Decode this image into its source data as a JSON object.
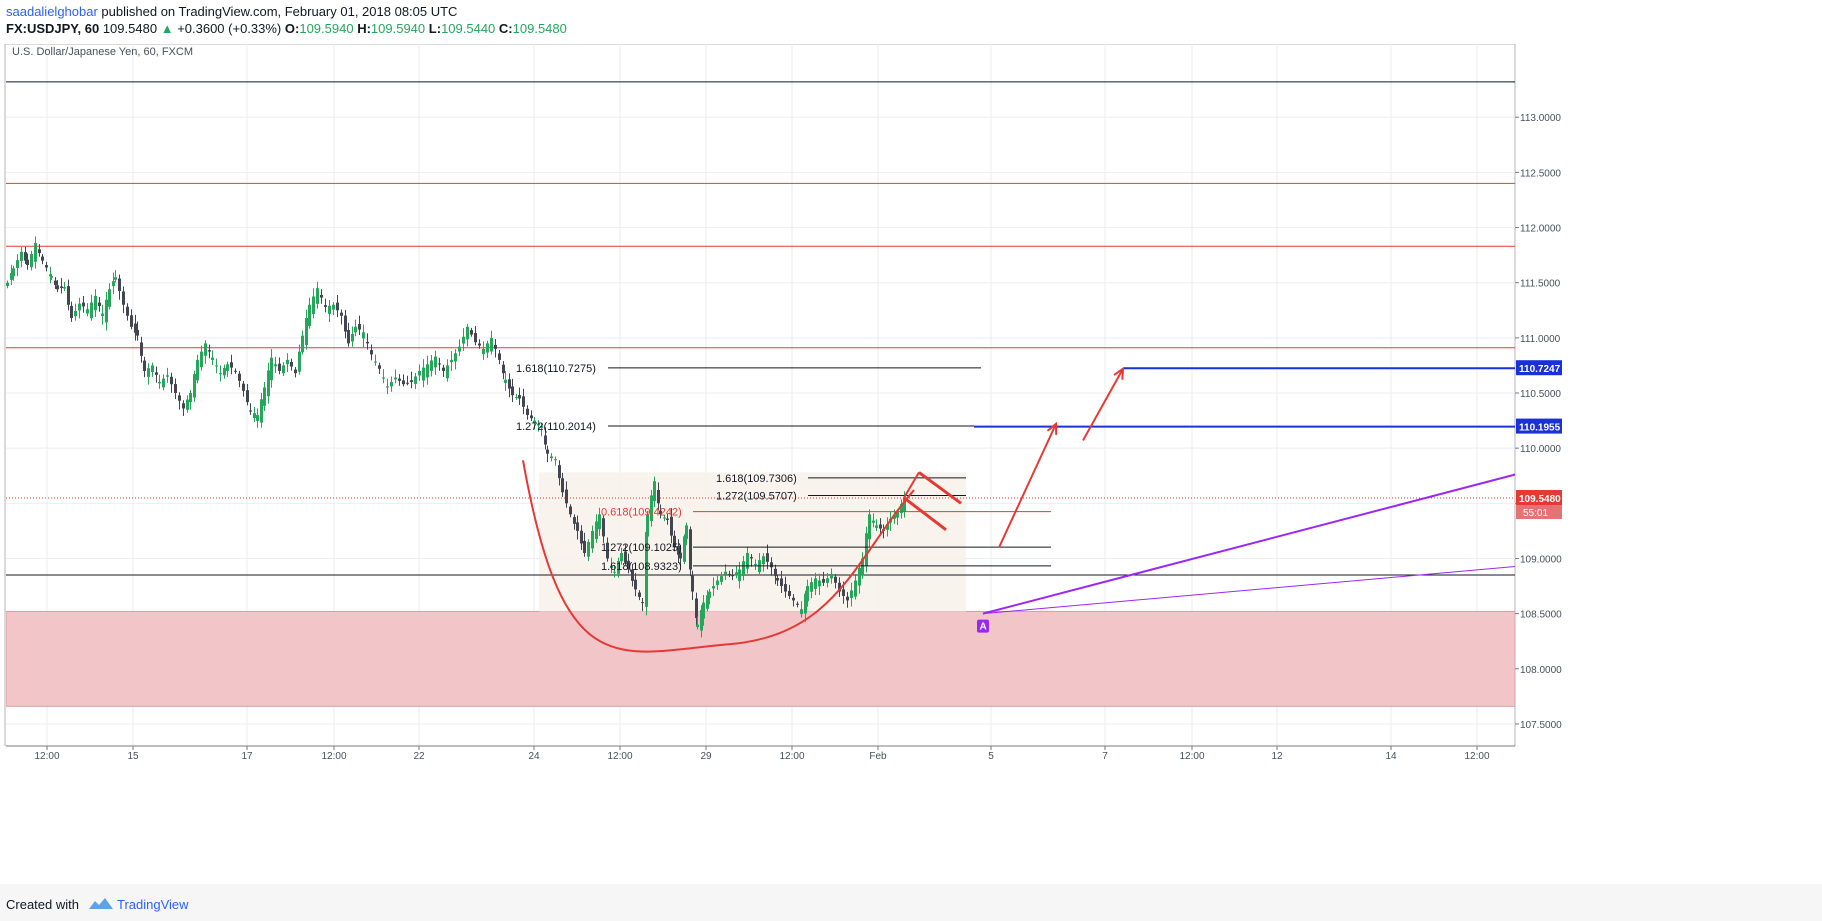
{
  "header": {
    "author": "saadalielghobar",
    "published_text": "published on TradingView.com, February 01, 2018 08:05 UTC",
    "symbol": "FX:USDJPY, 60",
    "last_price": "109.5480",
    "change_arrow": "▲",
    "change": "+0.3600 (+0.33%)",
    "o_label": "O:",
    "o_value": "109.5940",
    "h_label": "H:",
    "h_value": "109.5940",
    "l_label": "L:",
    "l_value": "109.5440",
    "c_label": "C:",
    "c_value": "109.5480"
  },
  "footer": {
    "created_with": "Created with",
    "brand": "TradingView"
  },
  "colors": {
    "up": "#26a65b",
    "down": "#434651",
    "resistance": "#e53935",
    "target_line": "#1a31d6",
    "trend_line": "#9c27f5",
    "demand_zone": "#f2c6c8",
    "fib_zone": "#f7f2ea"
  },
  "chart_data": {
    "type": "candlestick",
    "title": "U.S. Dollar/Japanese Yen, 60, FXCM",
    "y_axis": {
      "ylim": [
        107.3,
        113.7
      ],
      "ticks": [
        "113.0000",
        "112.5000",
        "112.0000",
        "111.5000",
        "111.0000",
        "110.5000",
        "110.0000",
        "109.5000",
        "109.0000",
        "108.5000",
        "108.0000",
        "107.5000"
      ],
      "price_labels": [
        {
          "text": "110.7247",
          "value": 110.7247,
          "color": "#1a31d6"
        },
        {
          "text": "110.1955",
          "value": 110.1955,
          "color": "#1a31d6"
        },
        {
          "text": "109.5480",
          "value": 109.548,
          "color": "#e53935"
        }
      ],
      "countdown": "55:01"
    },
    "x_axis": {
      "ticks": [
        "12:00",
        "15",
        "17",
        "12:00",
        "22",
        "24",
        "12:00",
        "29",
        "12:00",
        "Feb",
        "5",
        "7",
        "12:00",
        "12",
        "14",
        "12:00"
      ]
    },
    "ohlc_points": [
      {
        "t": 0,
        "c": 111.5
      },
      {
        "t": 6,
        "c": 111.63
      },
      {
        "t": 14,
        "c": 111.78
      },
      {
        "t": 20,
        "c": 111.66
      },
      {
        "t": 28,
        "c": 111.86
      },
      {
        "t": 35,
        "c": 111.7
      },
      {
        "t": 44,
        "c": 111.56
      },
      {
        "t": 50,
        "c": 111.44
      },
      {
        "t": 57,
        "c": 111.46
      },
      {
        "t": 64,
        "c": 111.18
      },
      {
        "t": 72,
        "c": 111.31
      },
      {
        "t": 80,
        "c": 111.26
      },
      {
        "t": 88,
        "c": 111.38
      },
      {
        "t": 95,
        "c": 111.22
      },
      {
        "t": 102,
        "c": 111.44
      },
      {
        "t": 108,
        "c": 111.55
      },
      {
        "t": 116,
        "c": 111.3
      },
      {
        "t": 124,
        "c": 111.1
      },
      {
        "t": 130,
        "c": 111.02
      },
      {
        "t": 137,
        "c": 110.7
      },
      {
        "t": 145,
        "c": 110.75
      },
      {
        "t": 152,
        "c": 110.6
      },
      {
        "t": 160,
        "c": 110.66
      },
      {
        "t": 168,
        "c": 110.5
      },
      {
        "t": 176,
        "c": 110.36
      },
      {
        "t": 183,
        "c": 110.5
      },
      {
        "t": 190,
        "c": 110.8
      },
      {
        "t": 198,
        "c": 110.95
      },
      {
        "t": 205,
        "c": 110.82
      },
      {
        "t": 213,
        "c": 110.68
      },
      {
        "t": 220,
        "c": 110.76
      },
      {
        "t": 228,
        "c": 110.7
      },
      {
        "t": 236,
        "c": 110.52
      },
      {
        "t": 243,
        "c": 110.34
      },
      {
        "t": 250,
        "c": 110.3
      },
      {
        "t": 257,
        "c": 110.55
      },
      {
        "t": 264,
        "c": 110.82
      },
      {
        "t": 272,
        "c": 110.7
      },
      {
        "t": 280,
        "c": 110.8
      },
      {
        "t": 288,
        "c": 110.68
      },
      {
        "t": 295,
        "c": 111.02
      },
      {
        "t": 302,
        "c": 111.3
      },
      {
        "t": 310,
        "c": 111.45
      },
      {
        "t": 318,
        "c": 111.28
      },
      {
        "t": 326,
        "c": 111.3
      },
      {
        "t": 334,
        "c": 111.2
      },
      {
        "t": 341,
        "c": 110.95
      },
      {
        "t": 348,
        "c": 111.1
      },
      {
        "t": 356,
        "c": 111.05
      },
      {
        "t": 364,
        "c": 110.85
      },
      {
        "t": 372,
        "c": 110.72
      },
      {
        "t": 380,
        "c": 110.56
      },
      {
        "t": 388,
        "c": 110.64
      },
      {
        "t": 396,
        "c": 110.58
      },
      {
        "t": 404,
        "c": 110.6
      },
      {
        "t": 412,
        "c": 110.7
      },
      {
        "t": 420,
        "c": 110.76
      },
      {
        "t": 428,
        "c": 110.83
      },
      {
        "t": 436,
        "c": 110.7
      },
      {
        "t": 444,
        "c": 110.8
      },
      {
        "t": 452,
        "c": 110.92
      },
      {
        "t": 460,
        "c": 111.1
      },
      {
        "t": 468,
        "c": 110.96
      },
      {
        "t": 476,
        "c": 110.9
      },
      {
        "t": 484,
        "c": 111.0
      },
      {
        "t": 492,
        "c": 110.8
      },
      {
        "t": 498,
        "c": 110.62
      },
      {
        "t": 505,
        "c": 110.48
      },
      {
        "t": 512,
        "c": 110.45
      },
      {
        "t": 520,
        "c": 110.3
      },
      {
        "t": 527,
        "c": 110.25
      },
      {
        "t": 534,
        "c": 110.2
      },
      {
        "t": 540,
        "c": 109.95
      },
      {
        "t": 548,
        "c": 109.9
      },
      {
        "t": 555,
        "c": 109.6
      },
      {
        "t": 563,
        "c": 109.4
      },
      {
        "t": 570,
        "c": 109.25
      },
      {
        "t": 577,
        "c": 109.05
      },
      {
        "t": 585,
        "c": 109.25
      },
      {
        "t": 592,
        "c": 109.4
      },
      {
        "t": 600,
        "c": 109.0
      },
      {
        "t": 607,
        "c": 108.88
      },
      {
        "t": 614,
        "c": 109.05
      },
      {
        "t": 621,
        "c": 108.9
      },
      {
        "t": 628,
        "c": 108.72
      },
      {
        "t": 635,
        "c": 108.6
      },
      {
        "t": 640,
        "c": 109.4
      },
      {
        "t": 647,
        "c": 109.7
      },
      {
        "t": 653,
        "c": 109.4
      },
      {
        "t": 660,
        "c": 109.35
      },
      {
        "t": 667,
        "c": 109.1
      },
      {
        "t": 673,
        "c": 109.0
      },
      {
        "t": 679,
        "c": 109.3
      },
      {
        "t": 685,
        "c": 108.7
      },
      {
        "t": 690,
        "c": 108.4
      },
      {
        "t": 696,
        "c": 108.6
      },
      {
        "t": 702,
        "c": 108.7
      },
      {
        "t": 710,
        "c": 108.8
      },
      {
        "t": 718,
        "c": 108.88
      },
      {
        "t": 725,
        "c": 108.84
      },
      {
        "t": 732,
        "c": 108.9
      },
      {
        "t": 740,
        "c": 109.05
      },
      {
        "t": 748,
        "c": 108.95
      },
      {
        "t": 756,
        "c": 109.02
      },
      {
        "t": 764,
        "c": 108.92
      },
      {
        "t": 770,
        "c": 108.8
      },
      {
        "t": 778,
        "c": 108.7
      },
      {
        "t": 786,
        "c": 108.62
      },
      {
        "t": 794,
        "c": 108.54
      },
      {
        "t": 800,
        "c": 108.75
      },
      {
        "t": 808,
        "c": 108.82
      },
      {
        "t": 816,
        "c": 108.78
      },
      {
        "t": 824,
        "c": 108.86
      },
      {
        "t": 832,
        "c": 108.7
      },
      {
        "t": 840,
        "c": 108.62
      },
      {
        "t": 848,
        "c": 108.8
      },
      {
        "t": 855,
        "c": 109.0
      },
      {
        "t": 862,
        "c": 109.4
      },
      {
        "t": 869,
        "c": 109.3
      },
      {
        "t": 876,
        "c": 109.25
      },
      {
        "t": 883,
        "c": 109.36
      },
      {
        "t": 890,
        "c": 109.42
      },
      {
        "t": 897,
        "c": 109.55
      }
    ],
    "horizontal_levels": [
      {
        "value": 113.32,
        "color": "#131722",
        "kind": "line"
      },
      {
        "value": 112.4,
        "color": "#e53935",
        "kind": "line"
      },
      {
        "value": 111.83,
        "color": "#e53935",
        "kind": "line"
      },
      {
        "value": 110.91,
        "color": "#e53935",
        "kind": "line"
      },
      {
        "value": 108.85,
        "color": "#131722",
        "kind": "line"
      }
    ],
    "demand_zone": {
      "from": 107.66,
      "to": 108.52
    },
    "fib_zone": {
      "from": 108.52,
      "to": 109.78,
      "start_t": 533,
      "end_t": 960
    },
    "fib_levels": [
      {
        "text": "1.618(110.7275)",
        "value": 110.7275,
        "color": "#131722",
        "start_t": 510,
        "end_t": 975
      },
      {
        "text": "1.272(110.2014)",
        "value": 110.2014,
        "color": "#131722",
        "start_t": 510,
        "end_t": 968
      },
      {
        "text": "1.618(109.7306)",
        "value": 109.7306,
        "color": "#131722",
        "start_t": 710,
        "end_t": 960
      },
      {
        "text": "1.272(109.5707)",
        "value": 109.5707,
        "color": "#131722",
        "start_t": 710,
        "end_t": 960
      },
      {
        "text": "0.618(109.4242)",
        "value": 109.4242,
        "color": "#e53935",
        "start_t": 595,
        "end_t": 1045
      },
      {
        "text": "1.272(109.1025)",
        "value": 109.1025,
        "color": "#131722",
        "start_t": 595,
        "end_t": 1045
      },
      {
        "text": "1.618(108.9323)",
        "value": 108.9323,
        "color": "#131722",
        "start_t": 595,
        "end_t": 1045
      }
    ],
    "target_lines": [
      {
        "value": 110.7247,
        "start_t": 1118
      },
      {
        "value": 110.1955,
        "start_t": 968
      }
    ],
    "last_price_line": {
      "value": 109.548,
      "color": "#e53935"
    },
    "cup_curve": {
      "start": [
        517,
        109.89
      ],
      "bottom": [
        720,
        108.22
      ],
      "end": [
        908,
        109.62
      ]
    },
    "arrows": [
      {
        "from": [
          993,
          109.1
        ],
        "to": [
          1050,
          110.22
        ],
        "color": "#e53935"
      },
      {
        "from": [
          1077,
          110.07
        ],
        "to": [
          1117,
          110.72
        ],
        "color": "#e53935"
      }
    ],
    "flag": {
      "top": [
        [
          913,
          109.78
        ],
        [
          955,
          109.5
        ]
      ],
      "bottom": [
        [
          898,
          109.55
        ],
        [
          940,
          109.26
        ]
      ]
    },
    "trend_lines": [
      {
        "from": [
          977,
          108.5
        ],
        "to": [
          1513,
          109.77
        ],
        "width": 2
      },
      {
        "from": [
          977,
          108.5
        ],
        "to": [
          1513,
          108.93
        ],
        "width": 1
      }
    ],
    "marker_label": "A",
    "marker_t": 977
  }
}
